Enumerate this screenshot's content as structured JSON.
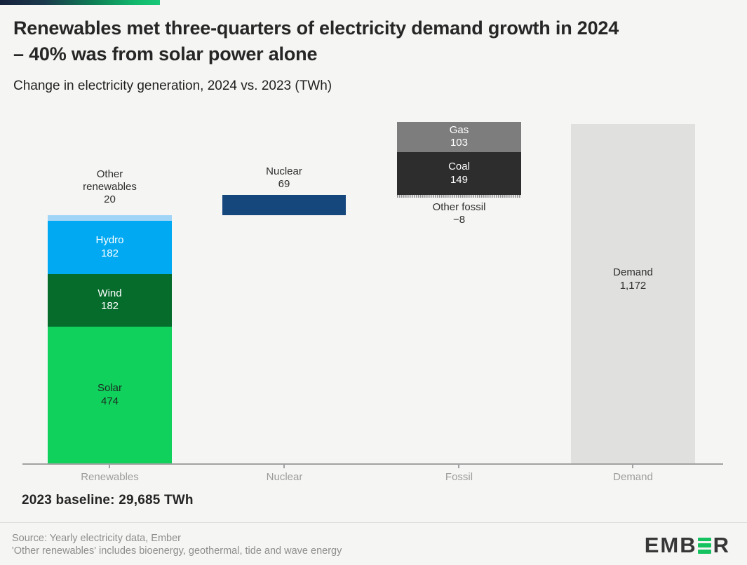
{
  "header": {
    "title_lines": [
      "Renewables met three-quarters of electricity demand growth in 2024",
      "– 40% was from solar power alone"
    ],
    "subtitle": "Change in electricity generation, 2024 vs. 2023 (TWh)"
  },
  "chart_data": {
    "type": "bar",
    "subtype": "stacked-waterfall",
    "unit": "TWh",
    "title": "Change in electricity generation, 2024 vs. 2023 (TWh)",
    "categories": [
      "Renewables",
      "Nuclear",
      "Fossil",
      "Demand"
    ],
    "value_range_twh": [
      0,
      1179
    ],
    "grid": false,
    "baseline_note": "2023 baseline: 29,685 TWh",
    "groups": [
      {
        "category": "Renewables",
        "stack_base_twh": 0,
        "segments": [
          {
            "label": "Other renewables",
            "value": 20,
            "display": "20",
            "color": "#a0d5f8",
            "label_position": "above"
          },
          {
            "label": "Hydro",
            "value": 182,
            "display": "182",
            "color": "#00a9f2",
            "text_color": "#ffffff",
            "label_position": "inside"
          },
          {
            "label": "Wind",
            "value": 182,
            "display": "182",
            "color": "#066c2c",
            "text_color": "#ffffff",
            "label_position": "inside"
          },
          {
            "label": "Solar",
            "value": 474,
            "display": "474",
            "color": "#0fd15c",
            "text_color": "#1e2b22",
            "label_position": "inside"
          }
        ]
      },
      {
        "category": "Nuclear",
        "stack_base_twh": 858,
        "segments": [
          {
            "label": "Nuclear",
            "value": 69,
            "display": "69",
            "color": "#15477c",
            "label_position": "above"
          }
        ]
      },
      {
        "category": "Fossil",
        "stack_base_twh": 919,
        "segments": [
          {
            "label": "Gas",
            "value": 103,
            "display": "103",
            "color": "#7d7d7d",
            "text_color": "#ffffff",
            "label_position": "inside"
          },
          {
            "label": "Coal",
            "value": 149,
            "display": "149",
            "color": "#2d2d2d",
            "text_color": "#ffffff",
            "label_position": "inside"
          },
          {
            "label": "Other fossil",
            "value": -8,
            "display": "−8",
            "pattern": true,
            "label_position": "below"
          }
        ]
      },
      {
        "category": "Demand",
        "stack_base_twh": 0,
        "segments": [
          {
            "label": "Demand",
            "value": 1172,
            "display": "1,172",
            "color": "#e0e0df",
            "text_color": "#2e2e2e",
            "label_position": "inside-top"
          }
        ]
      }
    ]
  },
  "footer": {
    "source_line": "Source: Yearly electricity data, Ember",
    "note_line": "'Other renewables' includes bioenergy, geothermal, tide and wave energy",
    "logo_pre": "EMB",
    "logo_post": "R",
    "logo_green": "#14c25f",
    "logo_dark": "#373737"
  },
  "brand_stripe_colors": [
    "#16223c",
    "#19c878"
  ]
}
